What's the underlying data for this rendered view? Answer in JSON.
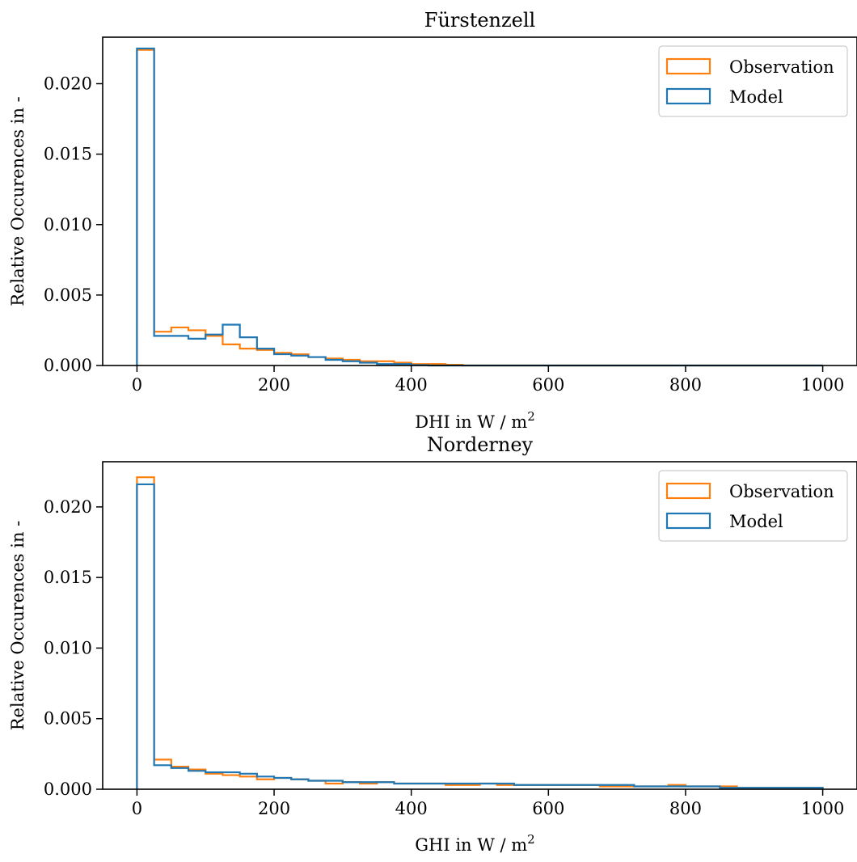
{
  "colors": {
    "observation": "#ff7f0e",
    "model": "#1f77b4",
    "axes": "#000000",
    "background": "#ffffff"
  },
  "chart_data": [
    {
      "type": "histogram-step",
      "title": "Fürstenzell",
      "xlabel_text": "DHI in W / m",
      "xlabel_superscript": "2",
      "ylabel": "Relative Occurences in -",
      "xlim": [
        -50,
        1050
      ],
      "ylim": [
        0,
        0.0233
      ],
      "xticks": [
        0,
        200,
        400,
        600,
        800,
        1000
      ],
      "yticks": [
        0.0,
        0.005,
        0.01,
        0.015,
        0.02
      ],
      "ytick_labels": [
        "0.000",
        "0.005",
        "0.010",
        "0.015",
        "0.020"
      ],
      "legend_position": "upper right",
      "bin_edges": [
        0,
        25,
        50,
        75,
        100,
        125,
        150,
        175,
        200,
        225,
        250,
        275,
        300,
        325,
        350,
        375,
        400,
        425,
        450,
        475,
        500,
        525,
        550,
        575,
        600,
        625,
        650,
        675,
        700,
        725,
        750,
        775,
        800,
        825,
        850,
        875,
        900,
        925,
        950,
        975,
        1000
      ],
      "series": [
        {
          "name": "Observation",
          "color_key": "observation",
          "values": [
            0.0224,
            0.0024,
            0.0027,
            0.0025,
            0.0021,
            0.0015,
            0.0012,
            0.0011,
            0.0009,
            0.0008,
            0.0006,
            0.0005,
            0.0004,
            0.0003,
            0.0003,
            0.0002,
            0.0001,
            0.0001,
            5e-05,
            0.0,
            0.0,
            0.0,
            0.0,
            0.0,
            0.0,
            0.0,
            0.0,
            0.0,
            0.0,
            0.0,
            0.0,
            0.0,
            0.0,
            0.0,
            0.0,
            0.0,
            0.0,
            0.0,
            0.0,
            0.0
          ]
        },
        {
          "name": "Model",
          "color_key": "model",
          "values": [
            0.0225,
            0.0021,
            0.0021,
            0.0019,
            0.0022,
            0.0029,
            0.002,
            0.0012,
            0.0008,
            0.0007,
            0.0006,
            0.0004,
            0.0003,
            0.0002,
            0.0001,
            0.0001,
            3e-05,
            0.0,
            0.0,
            0.0,
            0.0,
            0.0,
            0.0,
            0.0,
            0.0,
            0.0,
            0.0,
            0.0,
            0.0,
            0.0,
            0.0,
            0.0,
            0.0,
            0.0,
            0.0,
            0.0,
            0.0,
            0.0,
            0.0,
            0.0
          ]
        }
      ]
    },
    {
      "type": "histogram-step",
      "title": "Norderney",
      "xlabel_text": "GHI in W / m",
      "xlabel_superscript": "2",
      "ylabel": "Relative Occurences in -",
      "xlim": [
        -50,
        1050
      ],
      "ylim": [
        0,
        0.0232
      ],
      "xticks": [
        0,
        200,
        400,
        600,
        800,
        1000
      ],
      "yticks": [
        0.0,
        0.005,
        0.01,
        0.015,
        0.02
      ],
      "ytick_labels": [
        "0.000",
        "0.005",
        "0.010",
        "0.015",
        "0.020"
      ],
      "legend_position": "upper right",
      "bin_edges": [
        0,
        25,
        50,
        75,
        100,
        125,
        150,
        175,
        200,
        225,
        250,
        275,
        300,
        325,
        350,
        375,
        400,
        425,
        450,
        475,
        500,
        525,
        550,
        575,
        600,
        625,
        650,
        675,
        700,
        725,
        750,
        775,
        800,
        825,
        850,
        875,
        900,
        925,
        950,
        975,
        1000
      ],
      "series": [
        {
          "name": "Observation",
          "color_key": "observation",
          "values": [
            0.0221,
            0.0021,
            0.0016,
            0.0014,
            0.0011,
            0.001,
            0.0009,
            0.0007,
            0.0008,
            0.0007,
            0.0006,
            0.0004,
            0.0005,
            0.0004,
            0.0005,
            0.0004,
            0.0004,
            0.0004,
            0.0003,
            0.0003,
            0.0004,
            0.0003,
            0.0003,
            0.0003,
            0.0003,
            0.0003,
            0.0003,
            0.0002,
            0.0002,
            0.0002,
            0.0002,
            0.0003,
            0.0002,
            0.0002,
            0.0002,
            0.0001,
            0.0001,
            0.0001,
            0.0001,
            0.0001
          ]
        },
        {
          "name": "Model",
          "color_key": "model",
          "values": [
            0.0216,
            0.0017,
            0.0015,
            0.0013,
            0.0012,
            0.0012,
            0.0011,
            0.0009,
            0.0008,
            0.0007,
            0.0006,
            0.0006,
            0.0005,
            0.0005,
            0.0005,
            0.0004,
            0.0004,
            0.0004,
            0.0004,
            0.0004,
            0.0004,
            0.0004,
            0.0003,
            0.0003,
            0.0003,
            0.0003,
            0.0003,
            0.0003,
            0.0003,
            0.0002,
            0.0002,
            0.0002,
            0.0002,
            0.0002,
            0.0001,
            0.0001,
            0.0001,
            0.0001,
            0.0001,
            0.0001
          ]
        }
      ]
    }
  ]
}
